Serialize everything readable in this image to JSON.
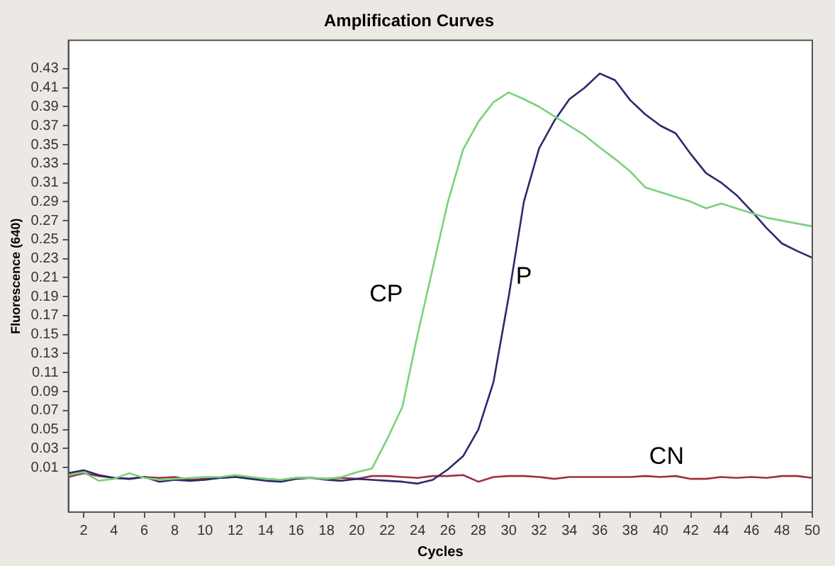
{
  "chart_data": {
    "type": "line",
    "title": "Amplification Curves",
    "xlabel": "Cycles",
    "ylabel": "Fluorescence (640)",
    "x": [
      1,
      2,
      3,
      4,
      5,
      6,
      7,
      8,
      9,
      10,
      11,
      12,
      13,
      14,
      15,
      16,
      17,
      18,
      19,
      20,
      21,
      22,
      23,
      24,
      25,
      26,
      27,
      28,
      29,
      30,
      31,
      32,
      33,
      34,
      35,
      36,
      37,
      38,
      39,
      40,
      41,
      42,
      43,
      44,
      45,
      46,
      47,
      48,
      49,
      50
    ],
    "series": [
      {
        "name": "CP",
        "color": "#78d27a",
        "values": [
          0.002,
          0.005,
          -0.004,
          -0.002,
          0.004,
          -0.001,
          -0.003,
          -0.002,
          -0.001,
          0.0,
          0.0,
          0.002,
          0.0,
          -0.002,
          -0.003,
          -0.001,
          -0.001,
          -0.002,
          0.0,
          0.005,
          0.009,
          0.04,
          0.074,
          0.15,
          0.22,
          0.29,
          0.345,
          0.374,
          0.395,
          0.405,
          0.398,
          0.39,
          0.38,
          0.37,
          0.36,
          0.347,
          0.335,
          0.322,
          0.305,
          0.3,
          0.295,
          0.29,
          0.283,
          0.288,
          0.283,
          0.278,
          0.273,
          0.27,
          0.267,
          0.264
        ]
      },
      {
        "name": "P",
        "color": "#2a2a6a",
        "values": [
          0.004,
          0.007,
          0.002,
          -0.001,
          -0.002,
          0.0,
          -0.005,
          -0.003,
          -0.004,
          -0.003,
          -0.001,
          0.0,
          -0.002,
          -0.004,
          -0.005,
          -0.002,
          -0.001,
          -0.003,
          -0.004,
          -0.002,
          -0.003,
          -0.004,
          -0.005,
          -0.007,
          -0.003,
          0.008,
          0.022,
          0.05,
          0.1,
          0.19,
          0.29,
          0.346,
          0.375,
          0.398,
          0.41,
          0.425,
          0.418,
          0.397,
          0.382,
          0.37,
          0.362,
          0.34,
          0.32,
          0.31,
          0.297,
          0.28,
          0.262,
          0.246,
          0.238,
          0.231
        ]
      },
      {
        "name": "CN",
        "color": "#a03040",
        "values": [
          0.0,
          0.004,
          0.001,
          -0.001,
          -0.002,
          0.0,
          -0.001,
          0.0,
          -0.003,
          -0.002,
          -0.001,
          0.0,
          -0.001,
          -0.002,
          -0.003,
          -0.001,
          -0.001,
          -0.002,
          -0.001,
          -0.002,
          0.001,
          0.001,
          0.0,
          -0.001,
          0.001,
          0.001,
          0.002,
          -0.005,
          0.0,
          0.001,
          0.001,
          0.0,
          -0.002,
          0.0,
          0.0,
          0.0,
          0.0,
          0.0,
          0.001,
          0.0,
          0.001,
          -0.002,
          -0.002,
          0.0,
          -0.001,
          0.0,
          -0.001,
          0.001,
          0.001,
          -0.001
        ]
      }
    ],
    "xlim": [
      1,
      50
    ],
    "xticks": [
      2,
      4,
      6,
      8,
      10,
      12,
      14,
      16,
      18,
      20,
      22,
      24,
      26,
      28,
      30,
      32,
      34,
      36,
      38,
      40,
      42,
      44,
      46,
      48,
      50
    ],
    "ylim": [
      -0.037,
      0.46
    ],
    "yticks": [
      0.01,
      0.03,
      0.05,
      0.07,
      0.09,
      0.11,
      0.13,
      0.15,
      0.17,
      0.19,
      0.21,
      0.23,
      0.25,
      0.27,
      0.29,
      0.31,
      0.33,
      0.35,
      0.37,
      0.39,
      0.41,
      0.43
    ],
    "grid": false,
    "legend": false,
    "marker": "none",
    "line_style": "solid"
  }
}
